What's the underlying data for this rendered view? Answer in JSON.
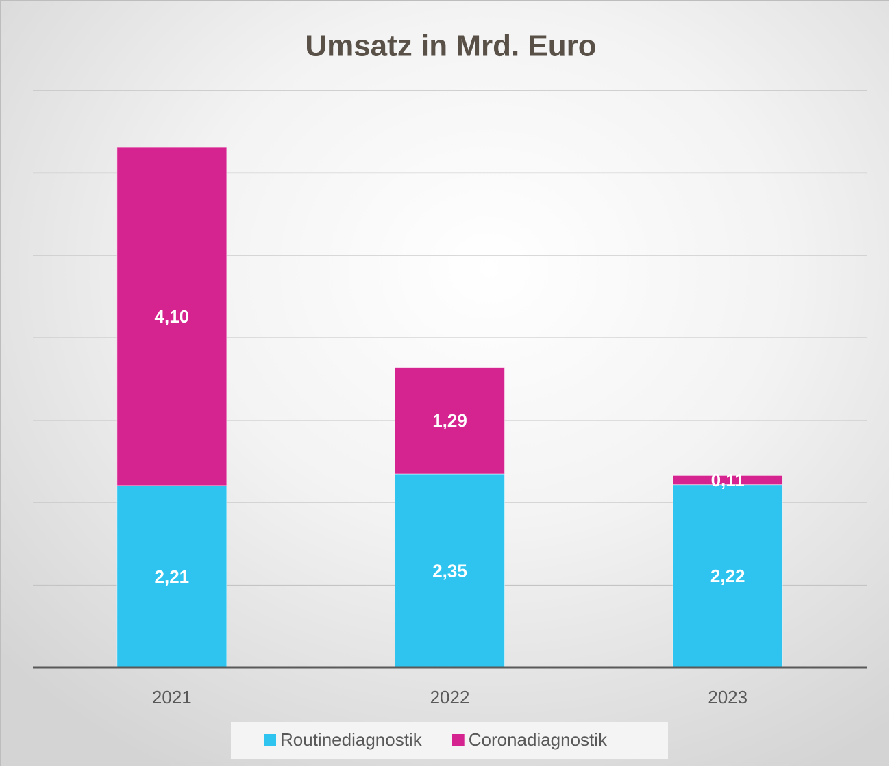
{
  "chart_data": {
    "type": "stacked_bar",
    "title": "Umsatz in Mrd. Euro",
    "categories": [
      "2021",
      "2022",
      "2023"
    ],
    "series": [
      {
        "name": "Routinediagnostik",
        "color": "#2ec4ef",
        "values": [
          2.21,
          2.35,
          2.22
        ],
        "value_labels": [
          "2,21",
          "2,35",
          "2,22"
        ]
      },
      {
        "name": "Coronadiagnostik",
        "color": "#d5248f",
        "values": [
          4.1,
          1.29,
          0.11
        ],
        "value_labels": [
          "4,10",
          "1,29",
          "0,11"
        ]
      }
    ],
    "ylim": [
      0,
      7
    ],
    "yticks": [
      0,
      1,
      2,
      3,
      4,
      5,
      6,
      7
    ],
    "grid": true,
    "legend": "bottom"
  }
}
